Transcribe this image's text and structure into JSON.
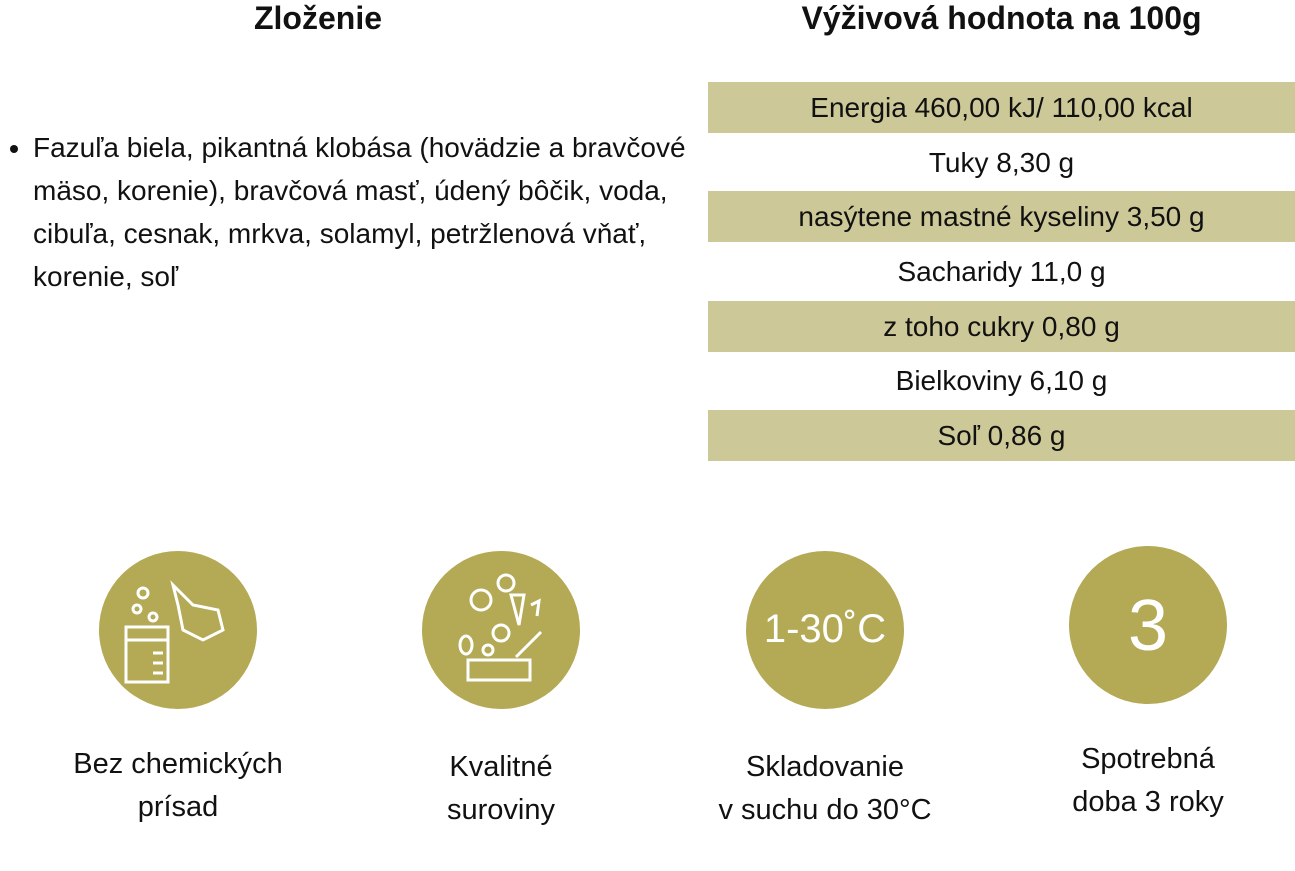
{
  "composition": {
    "title": "Zloženie",
    "items": [
      "Fazuľa biela, pikantná klobása (hovädzie a bravčové mäso, korenie), bravčová masť, údený bôčik, voda, cibuľa, cesnak, mrkva, solamyl, petržlenová vňať, korenie, soľ"
    ]
  },
  "nutrition": {
    "title": "Výživová hodnota na 100g",
    "rows": [
      "Energia 460,00 kJ/ 110,00 kcal",
      "Tuky 8,30 g",
      "nasýtene mastné kyseliny 3,50 g",
      "Sacharidy 11,0 g",
      "z toho cukry 0,80 g",
      "Bielkoviny 6,10 g",
      "Soľ 0,86 g"
    ]
  },
  "features": [
    {
      "label": [
        "Bez chemických",
        "prísad"
      ]
    },
    {
      "label": [
        "Kvalitné",
        "suroviny"
      ]
    },
    {
      "icon_text": "1-30˚C",
      "label": [
        "Skladovanie",
        "v suchu do 30°C"
      ]
    },
    {
      "icon_text": "3",
      "label": [
        "Spotrebná",
        "doba 3 roky"
      ]
    }
  ]
}
